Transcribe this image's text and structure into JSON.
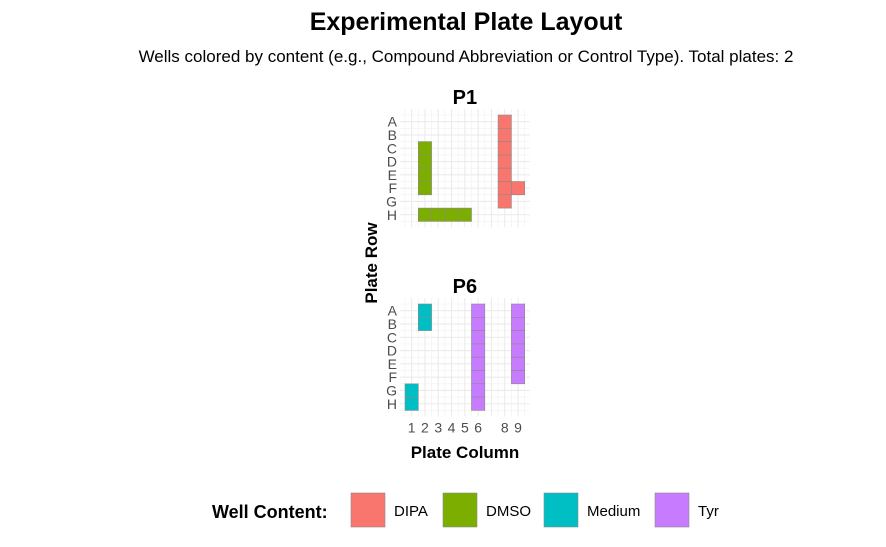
{
  "chart_data": {
    "type": "heatmap",
    "title": "Experimental Plate Layout",
    "subtitle": "Wells colored by content (e.g., Compound Abbreviation or Control Type). Total plates: 2",
    "xlabel": "Plate Column",
    "ylabel": "Plate Row",
    "rows": [
      "A",
      "B",
      "C",
      "D",
      "E",
      "F",
      "G",
      "H"
    ],
    "x_ticks": [
      "1",
      "2",
      "3",
      "4",
      "5",
      "6",
      "8",
      "9"
    ],
    "grid": true,
    "legend": {
      "title": "Well Content:",
      "position": "bottom",
      "entries": [
        {
          "label": "DIPA",
          "color": "#F8766D"
        },
        {
          "label": "DMSO",
          "color": "#7CAE00"
        },
        {
          "label": "Medium",
          "color": "#00BFC4"
        },
        {
          "label": "Tyr",
          "color": "#C77CFF"
        }
      ]
    },
    "plates": [
      {
        "name": "P1",
        "wells": [
          {
            "row": "A",
            "col": 8,
            "content": "DIPA"
          },
          {
            "row": "B",
            "col": 8,
            "content": "DIPA"
          },
          {
            "row": "C",
            "col": 8,
            "content": "DIPA"
          },
          {
            "row": "D",
            "col": 8,
            "content": "DIPA"
          },
          {
            "row": "E",
            "col": 8,
            "content": "DIPA"
          },
          {
            "row": "F",
            "col": 8,
            "content": "DIPA"
          },
          {
            "row": "G",
            "col": 8,
            "content": "DIPA"
          },
          {
            "row": "F",
            "col": 9,
            "content": "DIPA"
          },
          {
            "row": "C",
            "col": 2,
            "content": "DMSO"
          },
          {
            "row": "D",
            "col": 2,
            "content": "DMSO"
          },
          {
            "row": "E",
            "col": 2,
            "content": "DMSO"
          },
          {
            "row": "F",
            "col": 2,
            "content": "DMSO"
          },
          {
            "row": "H",
            "col": 2,
            "content": "DMSO"
          },
          {
            "row": "H",
            "col": 3,
            "content": "DMSO"
          },
          {
            "row": "H",
            "col": 4,
            "content": "DMSO"
          },
          {
            "row": "H",
            "col": 5,
            "content": "DMSO"
          }
        ]
      },
      {
        "name": "P6",
        "wells": [
          {
            "row": "A",
            "col": 2,
            "content": "Medium"
          },
          {
            "row": "B",
            "col": 2,
            "content": "Medium"
          },
          {
            "row": "G",
            "col": 1,
            "content": "Medium"
          },
          {
            "row": "H",
            "col": 1,
            "content": "Medium"
          },
          {
            "row": "A",
            "col": 6,
            "content": "Tyr"
          },
          {
            "row": "B",
            "col": 6,
            "content": "Tyr"
          },
          {
            "row": "C",
            "col": 6,
            "content": "Tyr"
          },
          {
            "row": "D",
            "col": 6,
            "content": "Tyr"
          },
          {
            "row": "E",
            "col": 6,
            "content": "Tyr"
          },
          {
            "row": "F",
            "col": 6,
            "content": "Tyr"
          },
          {
            "row": "G",
            "col": 6,
            "content": "Tyr"
          },
          {
            "row": "H",
            "col": 6,
            "content": "Tyr"
          },
          {
            "row": "A",
            "col": 9,
            "content": "Tyr"
          },
          {
            "row": "B",
            "col": 9,
            "content": "Tyr"
          },
          {
            "row": "C",
            "col": 9,
            "content": "Tyr"
          },
          {
            "row": "D",
            "col": 9,
            "content": "Tyr"
          },
          {
            "row": "E",
            "col": 9,
            "content": "Tyr"
          },
          {
            "row": "F",
            "col": 9,
            "content": "Tyr"
          }
        ]
      }
    ]
  }
}
